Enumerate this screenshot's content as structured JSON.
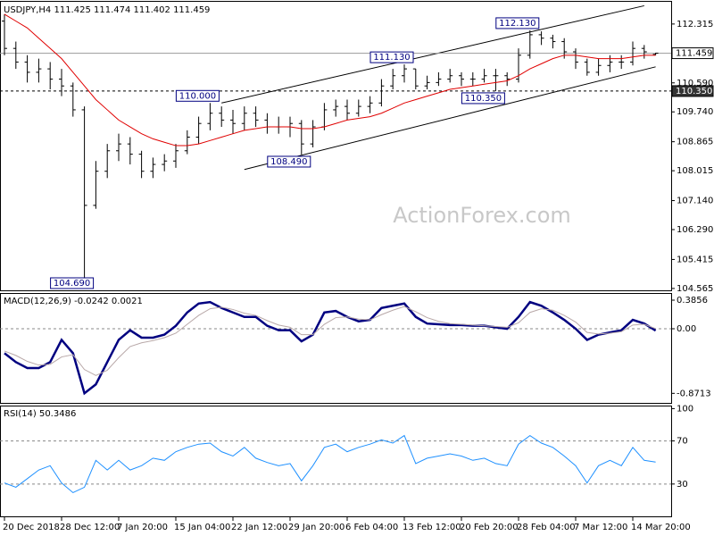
{
  "chart_data": [
    {
      "type": "ohlc",
      "title": "USDJPY,H4  111.425 111.474 111.402 111.459",
      "watermark": "ActionForex.com",
      "color": "#000000",
      "open": [
        112.4,
        111.6,
        111.2,
        110.9,
        111.0,
        110.7,
        110.5,
        109.8,
        107.0,
        108.0,
        108.6,
        108.8,
        108.5,
        108.0,
        108.2,
        108.3,
        108.6,
        109.0,
        109.4,
        109.7,
        109.5,
        109.4,
        109.7,
        109.5,
        109.3,
        109.3,
        109.4,
        108.8,
        109.3,
        109.8,
        109.9,
        109.7,
        109.9,
        110.0,
        110.5,
        110.8,
        111.0,
        110.5,
        110.6,
        110.7,
        110.8,
        110.7,
        110.7,
        110.8,
        110.8,
        110.7,
        111.4,
        112.0,
        111.9,
        111.8,
        111.5,
        111.2,
        110.9,
        111.1,
        111.2,
        111.2,
        111.6,
        111.425
      ],
      "high": [
        112.6,
        111.8,
        111.4,
        111.3,
        111.2,
        111.0,
        110.6,
        109.9,
        108.3,
        108.8,
        109.1,
        109.0,
        108.6,
        108.4,
        108.5,
        108.8,
        109.2,
        109.6,
        110.0,
        109.9,
        109.8,
        109.9,
        109.9,
        109.7,
        109.6,
        109.6,
        109.5,
        109.5,
        110.0,
        110.1,
        110.1,
        110.1,
        110.2,
        110.7,
        111.0,
        111.13,
        111.0,
        110.8,
        110.9,
        111.0,
        110.9,
        110.9,
        111.0,
        111.0,
        110.9,
        111.6,
        112.13,
        112.1,
        112.0,
        111.9,
        111.6,
        111.3,
        111.3,
        111.4,
        111.4,
        111.8,
        111.7,
        111.474
      ],
      "low": [
        111.4,
        111.0,
        110.6,
        110.6,
        110.4,
        110.2,
        109.6,
        104.69,
        106.9,
        107.8,
        108.3,
        108.2,
        107.8,
        107.8,
        108.0,
        108.1,
        108.5,
        108.8,
        109.2,
        109.3,
        109.1,
        109.2,
        109.3,
        109.1,
        109.1,
        109.0,
        108.49,
        108.7,
        109.2,
        109.6,
        109.5,
        109.6,
        109.7,
        109.9,
        110.4,
        110.6,
        110.4,
        110.4,
        110.5,
        110.6,
        110.5,
        110.5,
        110.6,
        110.35,
        110.5,
        110.6,
        111.3,
        111.7,
        111.6,
        111.3,
        111.0,
        110.8,
        110.8,
        110.9,
        111.0,
        111.1,
        111.3,
        111.402
      ],
      "close": [
        111.6,
        111.2,
        110.9,
        111.0,
        110.7,
        110.5,
        109.8,
        107.0,
        108.0,
        108.6,
        108.8,
        108.5,
        108.0,
        108.2,
        108.3,
        108.6,
        109.0,
        109.4,
        109.7,
        109.5,
        109.4,
        109.7,
        109.5,
        109.3,
        109.3,
        109.4,
        108.8,
        109.3,
        109.8,
        109.9,
        109.7,
        109.9,
        110.0,
        110.5,
        110.8,
        111.0,
        110.5,
        110.6,
        110.7,
        110.8,
        110.7,
        110.7,
        110.8,
        110.8,
        110.7,
        111.4,
        112.0,
        111.9,
        111.8,
        111.5,
        111.2,
        110.9,
        111.1,
        111.2,
        111.2,
        111.6,
        111.5,
        111.459
      ],
      "overlays": [
        {
          "color": "#e00000",
          "values": [
            112.6,
            112.4,
            112.2,
            111.9,
            111.6,
            111.3,
            110.9,
            110.5,
            110.1,
            109.8,
            109.5,
            109.3,
            109.1,
            108.95,
            108.85,
            108.75,
            108.75,
            108.8,
            108.9,
            109.0,
            109.1,
            109.2,
            109.25,
            109.3,
            109.3,
            109.3,
            109.25,
            109.25,
            109.3,
            109.4,
            109.5,
            109.55,
            109.6,
            109.7,
            109.85,
            110.0,
            110.1,
            110.2,
            110.3,
            110.4,
            110.45,
            110.5,
            110.55,
            110.6,
            110.65,
            110.8,
            111.0,
            111.15,
            111.3,
            111.4,
            111.4,
            111.35,
            111.3,
            111.3,
            111.3,
            111.35,
            111.4,
            111.4
          ]
        }
      ],
      "trendlines": [
        {
          "x": [
            19,
            56
          ],
          "y": [
            110.0,
            112.85
          ]
        },
        {
          "x": [
            21,
            57
          ],
          "y": [
            108.05,
            111.06
          ]
        }
      ],
      "hlines": [
        {
          "value": 111.459,
          "style": "solid"
        },
        {
          "value": 110.35,
          "label": "110.350",
          "style": "dashed"
        }
      ],
      "annotations": [
        {
          "index": 7,
          "value": 104.69,
          "label": "104.690"
        },
        {
          "index": 26,
          "value": 108.49,
          "label": "108.490"
        },
        {
          "index": 18,
          "value": 110.0,
          "label": "110.000"
        },
        {
          "index": 35,
          "value": 111.13,
          "label": "111.130"
        },
        {
          "index": 43,
          "value": 110.35,
          "label": "110.350"
        },
        {
          "index": 46,
          "value": 112.13,
          "label": "112.130"
        }
      ],
      "ylim": [
        104.51,
        112.94
      ],
      "yticks": [
        112.315,
        {
          "value": 110.59,
          "label": "110.590"
        },
        {
          "value": 109.74,
          "label": "109.740"
        },
        108.865,
        108.015,
        {
          "value": 107.14,
          "label": "107.140"
        },
        {
          "value": 106.29,
          "label": "106.290"
        },
        105.415,
        104.565
      ]
    },
    {
      "type": "line",
      "title": "MACD(12,26,9) -0.0242 0.0021",
      "series": [
        {
          "color": "#000080",
          "width": 2.5,
          "values": [
            -0.33,
            -0.45,
            -0.53,
            -0.53,
            -0.45,
            -0.15,
            -0.33,
            -0.87,
            -0.75,
            -0.45,
            -0.15,
            -0.02,
            -0.12,
            -0.12,
            -0.08,
            0.04,
            0.22,
            0.34,
            0.36,
            0.28,
            0.22,
            0.16,
            0.16,
            0.04,
            -0.02,
            -0.02,
            -0.17,
            -0.08,
            0.22,
            0.24,
            0.16,
            0.1,
            0.12,
            0.28,
            0.31,
            0.34,
            0.16,
            0.07,
            0.06,
            0.05,
            0.05,
            0.04,
            0.04,
            0.02,
            0,
            0.16,
            0.36,
            0.31,
            0.22,
            0.12,
            0,
            -0.15,
            -0.08,
            -0.05,
            -0.02,
            0.12,
            0.07,
            -0.0242
          ]
        },
        {
          "color": "#b8a8a8",
          "width": 1,
          "values": [
            -0.3,
            -0.36,
            -0.44,
            -0.49,
            -0.48,
            -0.38,
            -0.35,
            -0.55,
            -0.63,
            -0.56,
            -0.39,
            -0.24,
            -0.19,
            -0.16,
            -0.12,
            -0.06,
            0.06,
            0.18,
            0.27,
            0.29,
            0.26,
            0.21,
            0.18,
            0.11,
            0.05,
            0.02,
            -0.08,
            -0.08,
            0.06,
            0.15,
            0.16,
            0.13,
            0.12,
            0.19,
            0.25,
            0.3,
            0.23,
            0.15,
            0.1,
            0.07,
            0.06,
            0.05,
            0.04,
            0.03,
            0.02,
            0.08,
            0.22,
            0.27,
            0.25,
            0.18,
            0.09,
            -0.05,
            -0.07,
            -0.06,
            -0.04,
            0.05,
            0.06,
            0.0021
          ]
        }
      ],
      "levels": [
        0
      ],
      "ylim": [
        -1.0,
        0.47
      ],
      "yticks": [
        0.3856,
        {
          "value": 0,
          "label": "0.00"
        },
        -0.8713
      ]
    },
    {
      "type": "line",
      "title": "RSI(14) 50.3486",
      "series": [
        {
          "color": "#1e90ff",
          "width": 1,
          "values": [
            31,
            27,
            35,
            43,
            47,
            31,
            22,
            27,
            52,
            43,
            52,
            43,
            47,
            54,
            52,
            60,
            64,
            67,
            68,
            60,
            56,
            64,
            54,
            50,
            47,
            49,
            33,
            47,
            64,
            67,
            60,
            64,
            67,
            71,
            68,
            75,
            49,
            54,
            56,
            58,
            56,
            52,
            54,
            49,
            47,
            67,
            75,
            68,
            64,
            56,
            47,
            31,
            47,
            52,
            47,
            64,
            52,
            50.3486
          ]
        }
      ],
      "levels": [
        70,
        30
      ],
      "ylim": [
        0,
        102
      ],
      "yticks": [
        100,
        70,
        30
      ],
      "categories": [
        "20 Dec 2018",
        null,
        null,
        null,
        null,
        "28 Dec 12:00",
        null,
        null,
        null,
        null,
        "7 Jan 20:00",
        null,
        null,
        null,
        null,
        "15 Jan 04:00",
        null,
        null,
        null,
        null,
        "22 Jan 12:00",
        null,
        null,
        null,
        null,
        "29 Jan 20:00",
        null,
        null,
        null,
        null,
        "6 Feb 04:00",
        null,
        null,
        null,
        null,
        "13 Feb 12:00",
        null,
        null,
        null,
        null,
        "20 Feb 20:00",
        null,
        null,
        null,
        null,
        "28 Feb 04:00",
        null,
        null,
        null,
        null,
        "7 Mar 12:00",
        null,
        null,
        null,
        null,
        "14 Mar 20:00",
        null,
        null
      ]
    }
  ]
}
